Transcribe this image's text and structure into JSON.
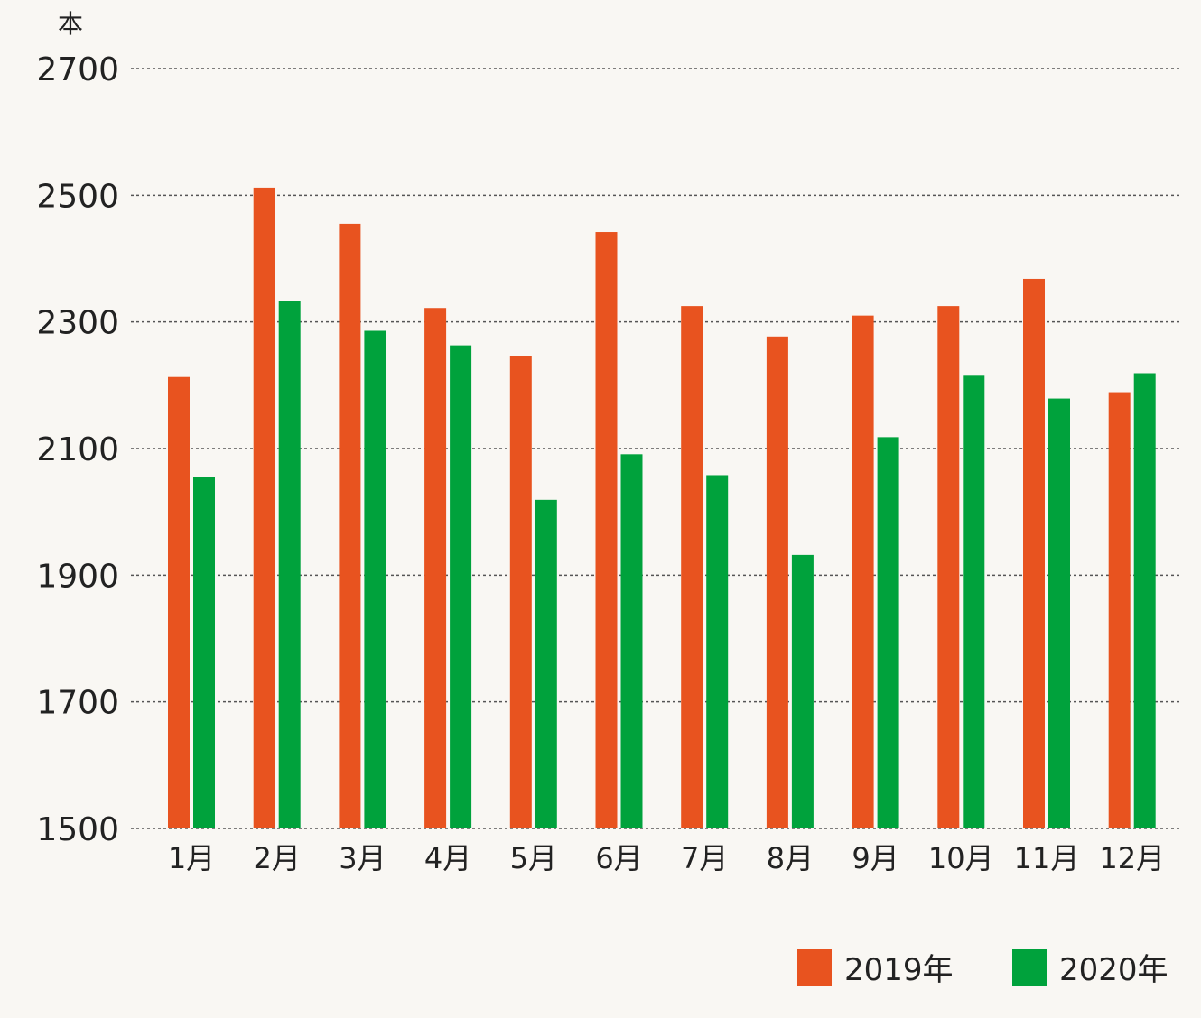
{
  "chart_data": {
    "type": "bar",
    "ylabel": "本",
    "ylim": [
      1500,
      2700
    ],
    "yticks": [
      1500,
      1700,
      1900,
      2100,
      2300,
      2500,
      2700
    ],
    "grid": true,
    "legend_position": "bottom-right",
    "categories": [
      "1月",
      "2月",
      "3月",
      "4月",
      "5月",
      "6月",
      "7月",
      "8月",
      "9月",
      "10月",
      "11月",
      "12月"
    ],
    "series": [
      {
        "name": "2019年",
        "color": "#e8531f",
        "values": [
          2213,
          2512,
          2455,
          2322,
          2246,
          2442,
          2325,
          2277,
          2310,
          2325,
          2368,
          2189
        ]
      },
      {
        "name": "2020年",
        "color": "#00a23c",
        "values": [
          2055,
          2333,
          2286,
          2263,
          2019,
          2091,
          2058,
          1932,
          2118,
          2215,
          2179,
          2219
        ]
      }
    ]
  }
}
